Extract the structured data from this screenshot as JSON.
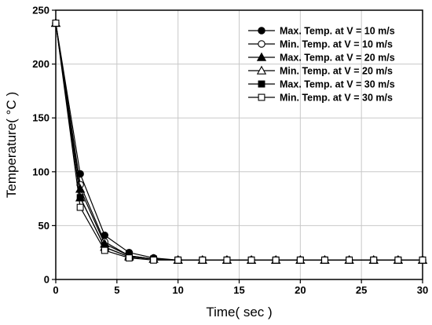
{
  "chart_data": {
    "type": "line",
    "xlabel": "Time( sec )",
    "ylabel": "Temperature( °C )",
    "xlim": [
      0,
      30
    ],
    "ylim": [
      0,
      250
    ],
    "xticks": [
      0,
      5,
      10,
      15,
      20,
      25,
      30
    ],
    "yticks": [
      0,
      50,
      100,
      150,
      200,
      250
    ],
    "grid": true,
    "legend_position": "top-right",
    "x": [
      0,
      2,
      4,
      6,
      8,
      10,
      12,
      14,
      16,
      18,
      20,
      22,
      24,
      26,
      28,
      30
    ],
    "series": [
      {
        "name": "Max. Temp. at V = 10 m/s",
        "marker": "circle-filled",
        "values": [
          238,
          98,
          41,
          25,
          20,
          18,
          18,
          18,
          18,
          18,
          18,
          18,
          18,
          18,
          18,
          18
        ]
      },
      {
        "name": "Min.  Temp. at V = 10 m/s",
        "marker": "circle-open",
        "values": [
          238,
          88,
          35,
          22,
          19,
          18,
          18,
          18,
          18,
          18,
          18,
          18,
          18,
          18,
          18,
          18
        ]
      },
      {
        "name": "Max. Temp. at V = 20 m/s",
        "marker": "triangle-filled",
        "values": [
          238,
          84,
          33,
          22,
          19,
          18,
          18,
          18,
          18,
          18,
          18,
          18,
          18,
          18,
          18,
          18
        ]
      },
      {
        "name": "Min.  Temp. at V = 20 m/s",
        "marker": "triangle-open",
        "values": [
          238,
          76,
          30,
          21,
          19,
          18,
          18,
          18,
          18,
          18,
          18,
          18,
          18,
          18,
          18,
          18
        ]
      },
      {
        "name": "Max. Temp. at V = 30 m/s",
        "marker": "square-filled",
        "values": [
          238,
          76,
          30,
          21,
          19,
          18,
          18,
          18,
          18,
          18,
          18,
          18,
          18,
          18,
          18,
          18
        ]
      },
      {
        "name": "Min.  Temp. at V = 30 m/s",
        "marker": "square-open",
        "values": [
          238,
          67,
          27,
          20,
          18,
          18,
          18,
          18,
          18,
          18,
          18,
          18,
          18,
          18,
          18,
          18
        ]
      }
    ]
  }
}
